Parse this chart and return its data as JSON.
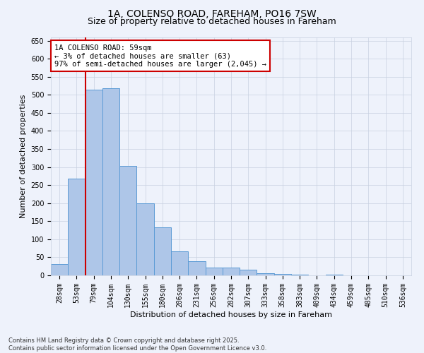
{
  "title_line1": "1A, COLENSO ROAD, FAREHAM, PO16 7SW",
  "title_line2": "Size of property relative to detached houses in Fareham",
  "xlabel": "Distribution of detached houses by size in Fareham",
  "ylabel": "Number of detached properties",
  "categories": [
    "28sqm",
    "53sqm",
    "79sqm",
    "104sqm",
    "130sqm",
    "155sqm",
    "180sqm",
    "206sqm",
    "231sqm",
    "256sqm",
    "282sqm",
    "307sqm",
    "333sqm",
    "358sqm",
    "383sqm",
    "409sqm",
    "434sqm",
    "459sqm",
    "485sqm",
    "510sqm",
    "536sqm"
  ],
  "values": [
    32,
    268,
    515,
    519,
    304,
    199,
    133,
    67,
    40,
    22,
    22,
    15,
    6,
    4,
    2,
    0,
    1,
    0,
    0,
    0,
    0
  ],
  "bar_color": "#aec6e8",
  "bar_edge_color": "#5b9bd5",
  "red_line_index": 1,
  "annotation_text": "1A COLENSO ROAD: 59sqm\n← 3% of detached houses are smaller (63)\n97% of semi-detached houses are larger (2,045) →",
  "annotation_box_color": "#ffffff",
  "annotation_box_edge_color": "#cc0000",
  "red_line_color": "#cc0000",
  "ylim": [
    0,
    660
  ],
  "yticks": [
    0,
    50,
    100,
    150,
    200,
    250,
    300,
    350,
    400,
    450,
    500,
    550,
    600,
    650
  ],
  "background_color": "#eef2fb",
  "grid_color": "#c8d0e0",
  "footer_text": "Contains HM Land Registry data © Crown copyright and database right 2025.\nContains public sector information licensed under the Open Government Licence v3.0.",
  "title_fontsize": 10,
  "subtitle_fontsize": 9,
  "axis_label_fontsize": 8,
  "tick_fontsize": 7,
  "annotation_fontsize": 7.5
}
